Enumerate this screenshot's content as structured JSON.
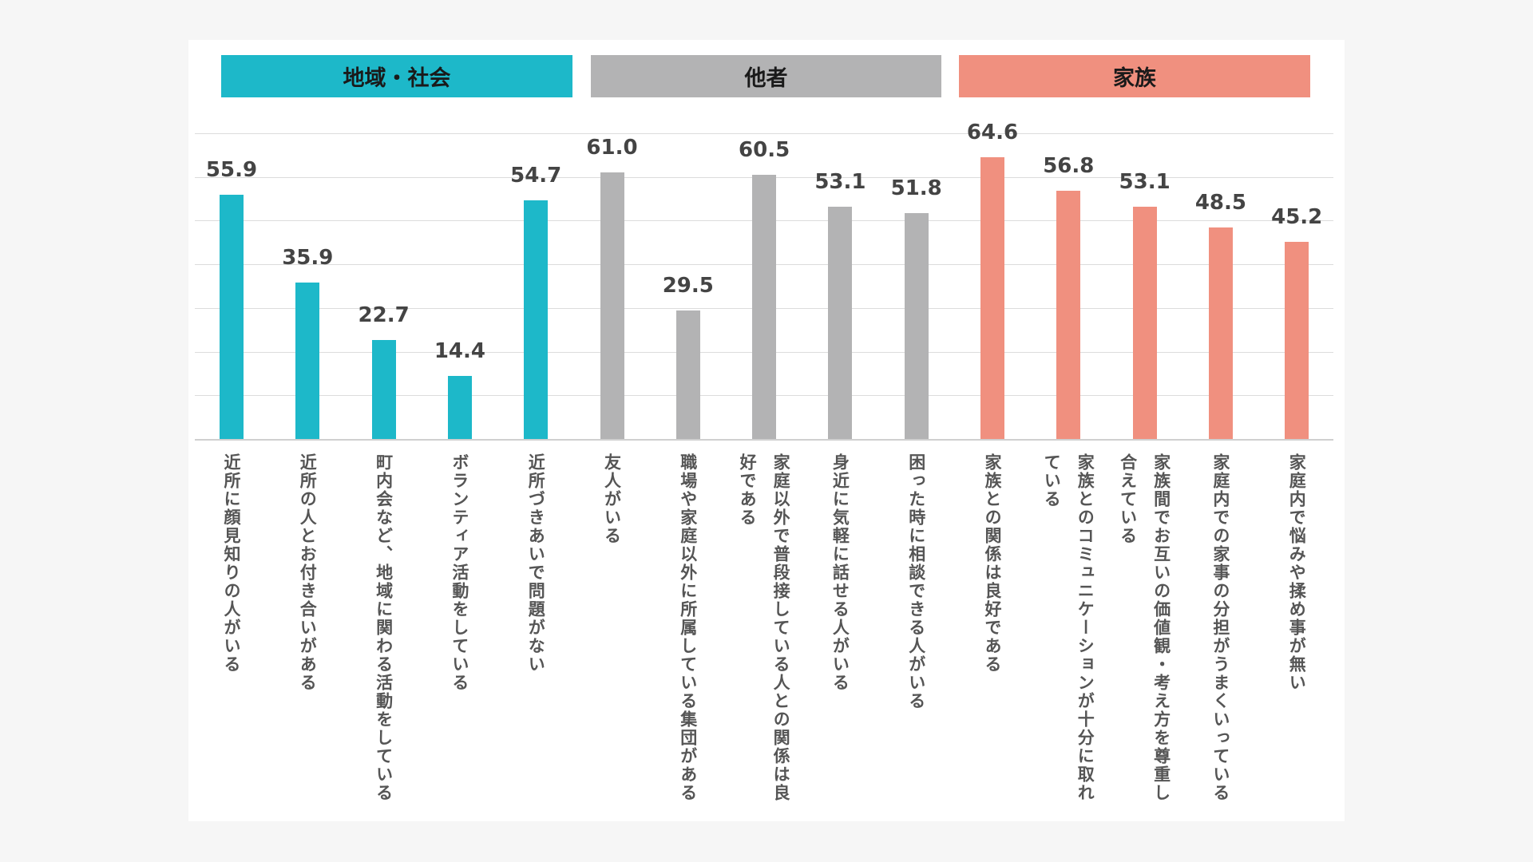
{
  "colors": {
    "地域・社会": "#1db8c9",
    "他者": "#b3b3b4",
    "家族": "#f0907f"
  },
  "groups": [
    {
      "label": "地域・社会",
      "color": "#1db8c9"
    },
    {
      "label": "他者",
      "color": "#b3b3b4"
    },
    {
      "label": "家族",
      "color": "#f0907f"
    }
  ],
  "chart_data": {
    "type": "bar",
    "title": "",
    "xlabel": "",
    "ylabel": "",
    "ylim": [
      0,
      70
    ],
    "grid": true,
    "gridlines": [
      10,
      20,
      30,
      40,
      50,
      60,
      70
    ],
    "categories": [
      "近所に顔見知りの人がいる",
      "近所の人とお付き合いがある",
      "町内会など、地域に関わる活動をしている",
      "ボランティア活動をしている",
      "近所づきあいで問題がない",
      "友人がいる",
      "職場や家庭以外に所属している集団がある",
      "家庭以外で普段接している人との関係は良好である",
      "身近に気軽に話せる人がいる",
      "困った時に相談できる人がいる",
      "家族との関係は良好である",
      "家族とのコミュニケーションが十分に取れている",
      "家族間でお互いの価値観・考え方を尊重し合えている",
      "家庭内での家事の分担がうまくいっている",
      "家庭内で悩みや揉め事が無い"
    ],
    "category_lines": [
      [
        "近所に顔見知りの人がいる"
      ],
      [
        "近所の人とお付き合いがある"
      ],
      [
        "町内会など、地域に関わる活動をしている"
      ],
      [
        "ボランティア活動をしている"
      ],
      [
        "近所づきあいで問題がない"
      ],
      [
        "友人がいる"
      ],
      [
        "職場や家庭以外に所属している集団がある"
      ],
      [
        "家庭以外で普段接している人との関係は良",
        "好である"
      ],
      [
        "身近に気軽に話せる人がいる"
      ],
      [
        "困った時に相談できる人がいる"
      ],
      [
        "家族との関係は良好である"
      ],
      [
        "家族とのコミュニケーションが十分に取れ",
        "ている"
      ],
      [
        "家族間でお互いの価値観・考え方を尊重し",
        "合えている"
      ],
      [
        "家庭内での家事の分担がうまくいっている"
      ],
      [
        "家庭内で悩みや揉め事が無い"
      ]
    ],
    "groups": [
      0,
      0,
      0,
      0,
      0,
      1,
      1,
      1,
      1,
      1,
      2,
      2,
      2,
      2,
      2
    ],
    "values": [
      55.9,
      35.9,
      22.7,
      14.4,
      54.7,
      61.0,
      29.5,
      60.5,
      53.1,
      51.8,
      64.6,
      56.8,
      53.1,
      48.5,
      45.2
    ],
    "value_labels": [
      "55.9",
      "35.9",
      "22.7",
      "14.4",
      "54.7",
      "61.0",
      "29.5",
      "60.5",
      "53.1",
      "51.8",
      "64.6",
      "56.8",
      "53.1",
      "48.5",
      "45.2"
    ]
  }
}
